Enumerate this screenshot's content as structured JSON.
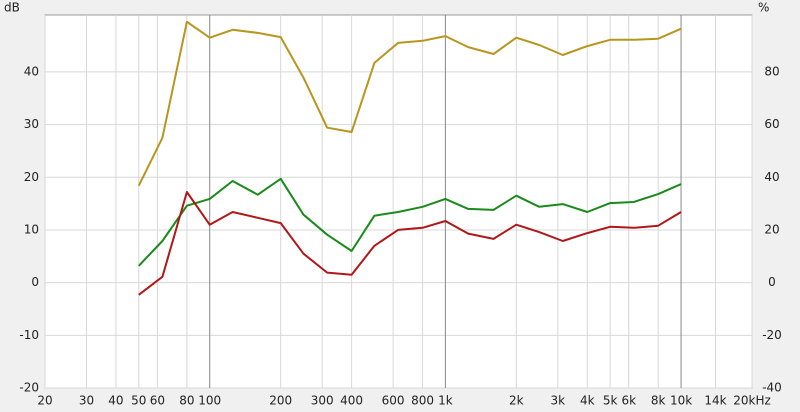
{
  "chart_data": {
    "type": "line",
    "log_x": true,
    "y_label": "dB",
    "y2_label": "%",
    "x": [
      50,
      63,
      80,
      100,
      125,
      160,
      200,
      250,
      315,
      400,
      500,
      630,
      800,
      1000,
      1250,
      1600,
      2000,
      2500,
      3150,
      4000,
      5000,
      6300,
      8000,
      10000
    ],
    "series": [
      {
        "color": "#b8961e",
        "values": [
          18.4,
          27.5,
          49.5,
          46.5,
          48.0,
          47.4,
          46.6,
          38.9,
          29.4,
          28.6,
          41.7,
          45.5,
          45.9,
          46.8,
          44.7,
          43.4,
          46.5,
          45.1,
          43.2,
          44.9,
          46.1,
          46.1,
          46.3,
          48.2
        ]
      },
      {
        "color": "#1a8a1a",
        "values": [
          3.2,
          7.9,
          14.6,
          15.9,
          19.3,
          16.7,
          19.7,
          12.9,
          9.1,
          6.0,
          12.7,
          13.4,
          14.4,
          15.9,
          14.0,
          13.8,
          16.5,
          14.4,
          14.9,
          13.4,
          15.1,
          15.3,
          16.8,
          18.7
        ]
      },
      {
        "color": "#b01818",
        "values": [
          -2.3,
          1.1,
          17.2,
          11.0,
          13.4,
          12.3,
          11.3,
          5.5,
          1.9,
          1.5,
          7.0,
          10.0,
          10.4,
          11.7,
          9.3,
          8.3,
          11.0,
          9.6,
          7.9,
          9.4,
          10.6,
          10.4,
          10.8,
          13.4
        ]
      }
    ],
    "xlim": [
      20,
      20000
    ],
    "xticks": [
      20,
      30,
      40,
      50,
      60,
      80,
      100,
      200,
      300,
      400,
      600,
      800,
      {
        "value": 1000,
        "label": "1k"
      },
      {
        "value": 2000,
        "label": "2k"
      },
      {
        "value": 3000,
        "label": "3k"
      },
      {
        "value": 4000,
        "label": "4k"
      },
      {
        "value": 5000,
        "label": "5k"
      },
      {
        "value": 6000,
        "label": "6k"
      },
      {
        "value": 8000,
        "label": "8k"
      },
      {
        "value": 10000,
        "label": "10k"
      },
      {
        "value": 14000,
        "label": "14k"
      },
      {
        "value": 20000,
        "label": "20kHz"
      }
    ],
    "ylim": [
      -20,
      50.8
    ],
    "yticks": [
      -20,
      -10,
      0,
      10,
      20,
      30,
      40
    ],
    "y2lim": [
      -40,
      101.6
    ],
    "y2ticks": [
      -40,
      -20,
      0,
      20,
      40,
      60,
      80
    ],
    "grid": true
  }
}
